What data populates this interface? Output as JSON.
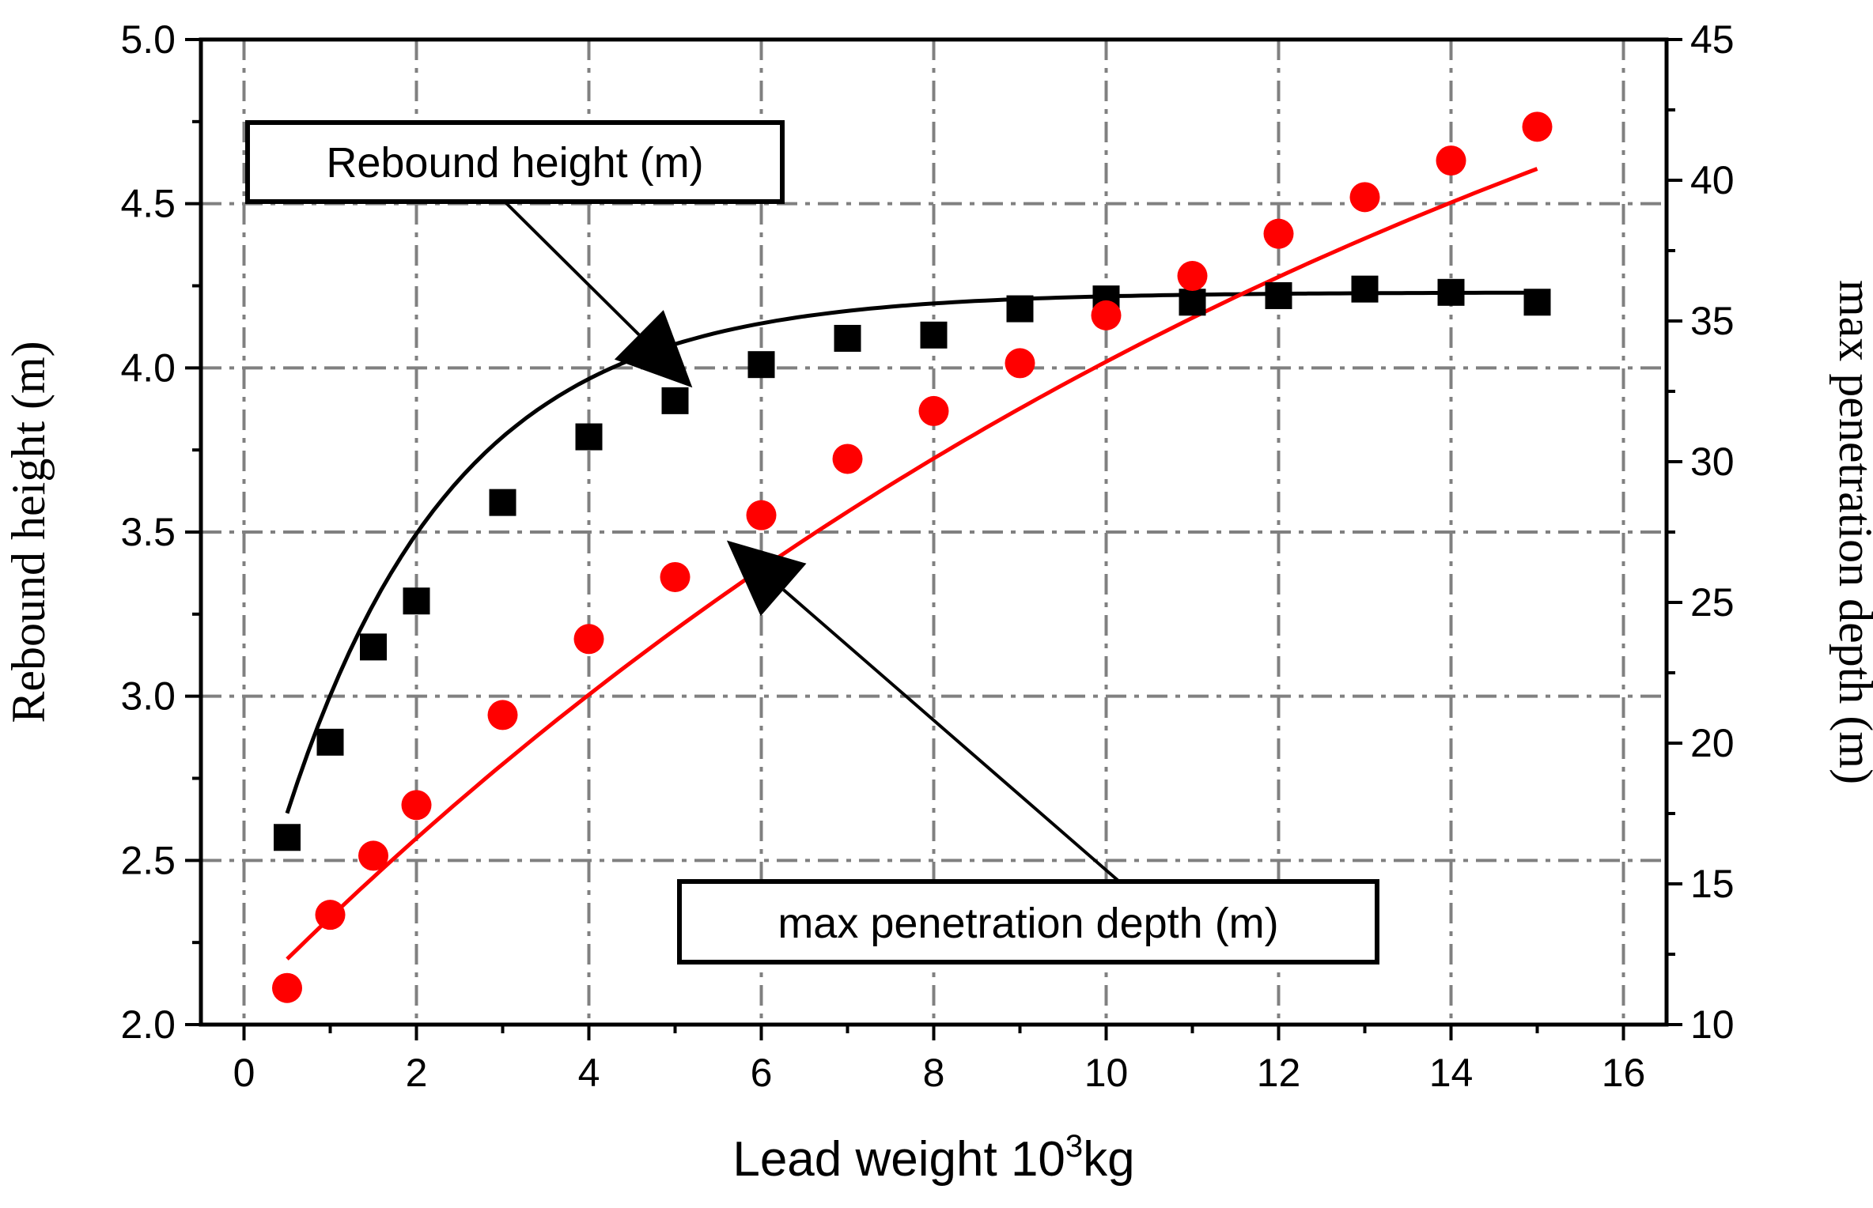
{
  "chart_data": {
    "type": "line",
    "title": "",
    "xlabel": "Lead weight 10",
    "xlabel_sup": "3",
    "xlabel_tail": "kg",
    "ylabel": "Rebound height (m)",
    "y2label": "max penetration depth (m)",
    "xlim": [
      -0.5,
      16.5
    ],
    "ylim": [
      2.0,
      5.0
    ],
    "y2lim": [
      10,
      45
    ],
    "xticks": [
      "0",
      "2",
      "4",
      "6",
      "8",
      "10",
      "12",
      "14",
      "16"
    ],
    "yticks": [
      "2.0",
      "2.5",
      "3.0",
      "3.5",
      "4.0",
      "4.5",
      "5.0"
    ],
    "y2ticks": [
      "10",
      "15",
      "20",
      "25",
      "30",
      "35",
      "40",
      "45"
    ],
    "grid": true,
    "colors": {
      "rebound": "#000000",
      "penetration": "#ff0000",
      "grid": "#808080"
    },
    "series": [
      {
        "name": "Rebound height (m)",
        "axis": "left",
        "marker": "square",
        "color": "#000000",
        "x": [
          0.5,
          1,
          1.5,
          2,
          3,
          4,
          5,
          6,
          7,
          8,
          9,
          10,
          11,
          12,
          13,
          14,
          15
        ],
        "values": [
          2.57,
          2.86,
          3.15,
          3.29,
          3.59,
          3.79,
          3.9,
          4.01,
          4.09,
          4.1,
          4.18,
          4.21,
          4.2,
          4.22,
          4.24,
          4.23,
          4.2
        ]
      },
      {
        "name": "max penetration depth (m)",
        "axis": "right",
        "marker": "circle",
        "color": "#ff0000",
        "x": [
          0.5,
          1,
          1.5,
          2,
          3,
          4,
          5,
          6,
          7,
          8,
          9,
          10,
          11,
          12,
          13,
          14,
          15
        ],
        "values": [
          11.3,
          13.9,
          16.0,
          17.8,
          21.0,
          23.7,
          25.9,
          28.1,
          30.1,
          31.8,
          33.5,
          35.2,
          36.6,
          38.1,
          39.4,
          40.7,
          41.9
        ]
      }
    ],
    "annotations": [
      {
        "text": "Rebound height (m)",
        "target_series": "Rebound height (m)"
      },
      {
        "text": "max penetration depth (m)",
        "target_series": "max penetration depth (m)"
      }
    ]
  }
}
